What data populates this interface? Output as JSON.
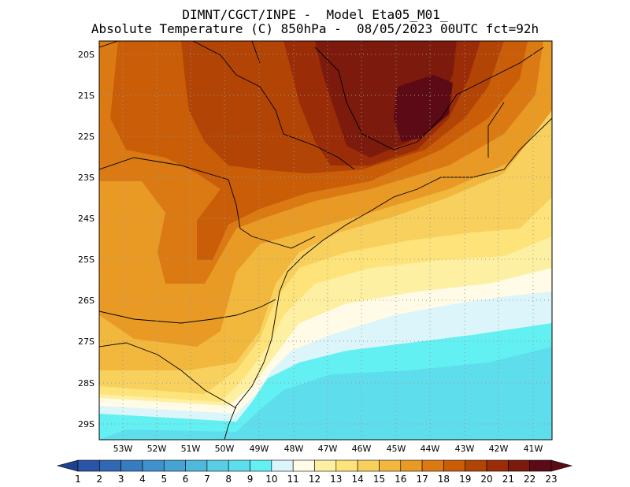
{
  "header": {
    "line1": "DIMNT/CGCT/INPE -  Model Eta05_M01_",
    "line2": "Absolute Temperature (C) 850hPa -  08/05/2023 00UTC fct=92h"
  },
  "map": {
    "lat_labels": [
      "20S",
      "21S",
      "22S",
      "23S",
      "24S",
      "25S",
      "26S",
      "27S",
      "28S",
      "29S"
    ],
    "lon_labels": [
      "53W",
      "52W",
      "51W",
      "50W",
      "49W",
      "48W",
      "47W",
      "46W",
      "45W",
      "44W",
      "43W",
      "42W",
      "41W"
    ]
  },
  "colorbar": {
    "labels": [
      "1",
      "2",
      "3",
      "4",
      "5",
      "6",
      "7",
      "8",
      "9",
      "10",
      "11",
      "12",
      "13",
      "14",
      "15",
      "16",
      "17",
      "18",
      "19",
      "20",
      "21",
      "22",
      "23"
    ],
    "colors": [
      "#1f3f8f",
      "#2a55a6",
      "#3168b4",
      "#387cc0",
      "#3f90cb",
      "#47a3d4",
      "#50b8dd",
      "#5acce5",
      "#5edeec",
      "#62f0f2",
      "#dcf5fa",
      "#fffbe6",
      "#fdf0a3",
      "#fde37a",
      "#f8d05e",
      "#f2b83d",
      "#e89a25",
      "#db7a12",
      "#c95d08",
      "#b24405",
      "#9a2d08",
      "#7c1a0d",
      "#5c0a15"
    ]
  }
}
